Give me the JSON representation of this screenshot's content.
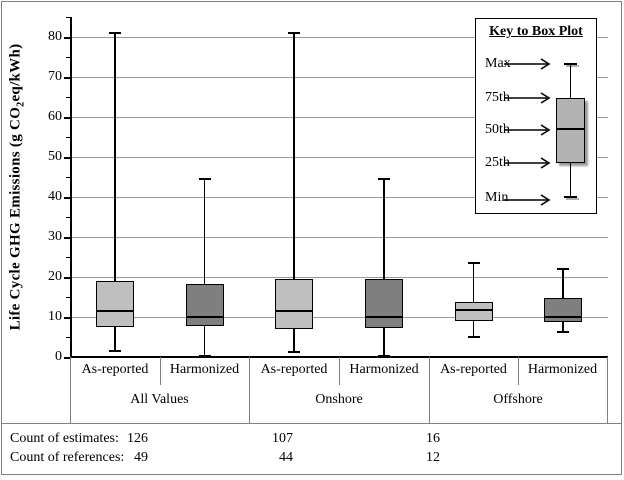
{
  "chart_data": {
    "type": "box",
    "ylabel": "Life Cycle GHG Emissions (g CO2eq/kWh)",
    "ylabel_pre": "Life Cycle GHG Emissions (g CO",
    "ylabel_sub": "2",
    "ylabel_post": "eq/kWh)",
    "y_axis": {
      "ticks": [
        0,
        10,
        20,
        30,
        40,
        50,
        60,
        70,
        80
      ],
      "ylim": [
        0,
        85
      ],
      "minor_start": 5,
      "minor_step": 10,
      "minor_end": 85,
      "grid": true
    },
    "groups": [
      {
        "label": "All Values",
        "variants": [
          "As-reported",
          "Harmonized"
        ]
      },
      {
        "label": "Onshore",
        "variants": [
          "As-reported",
          "Harmonized"
        ]
      },
      {
        "label": "Offshore",
        "variants": [
          "As-reported",
          "Harmonized"
        ]
      }
    ],
    "series": [
      {
        "group": "All Values",
        "variant": "As-reported",
        "min": 1.5,
        "q1": 7.5,
        "median": 11.5,
        "q3": 19.0,
        "max": 81.0
      },
      {
        "group": "All Values",
        "variant": "Harmonized",
        "min": 0.3,
        "q1": 7.8,
        "median": 10.0,
        "q3": 18.3,
        "max": 44.5
      },
      {
        "group": "Onshore",
        "variant": "As-reported",
        "min": 1.2,
        "q1": 7.0,
        "median": 11.5,
        "q3": 19.5,
        "max": 81.0
      },
      {
        "group": "Onshore",
        "variant": "Harmonized",
        "min": 0.3,
        "q1": 7.2,
        "median": 10.0,
        "q3": 19.5,
        "max": 44.5
      },
      {
        "group": "Offshore",
        "variant": "As-reported",
        "min": 5.0,
        "q1": 9.0,
        "median": 11.8,
        "q3": 13.8,
        "max": 23.5
      },
      {
        "group": "Offshore",
        "variant": "Harmonized",
        "min": 6.3,
        "q1": 8.8,
        "median": 10.0,
        "q3": 14.7,
        "max": 22.0
      }
    ],
    "legend": {
      "title": "Key to Box Plot",
      "labels": [
        "Max",
        "75th",
        "50th",
        "25th",
        "Min"
      ],
      "position": "top-right"
    },
    "colors": {
      "as_reported": "#bfbfbf",
      "harmonized": "#7f7f7f",
      "gridline": "#999999",
      "axis": "#000000",
      "legend_sample_fill": "#b3b3b3",
      "border": "#808080"
    }
  },
  "counts": {
    "estimates_label": "Count of estimates:",
    "references_label": "Count of references:",
    "estimates": [
      126,
      107,
      16
    ],
    "references": [
      49,
      44,
      12
    ]
  }
}
